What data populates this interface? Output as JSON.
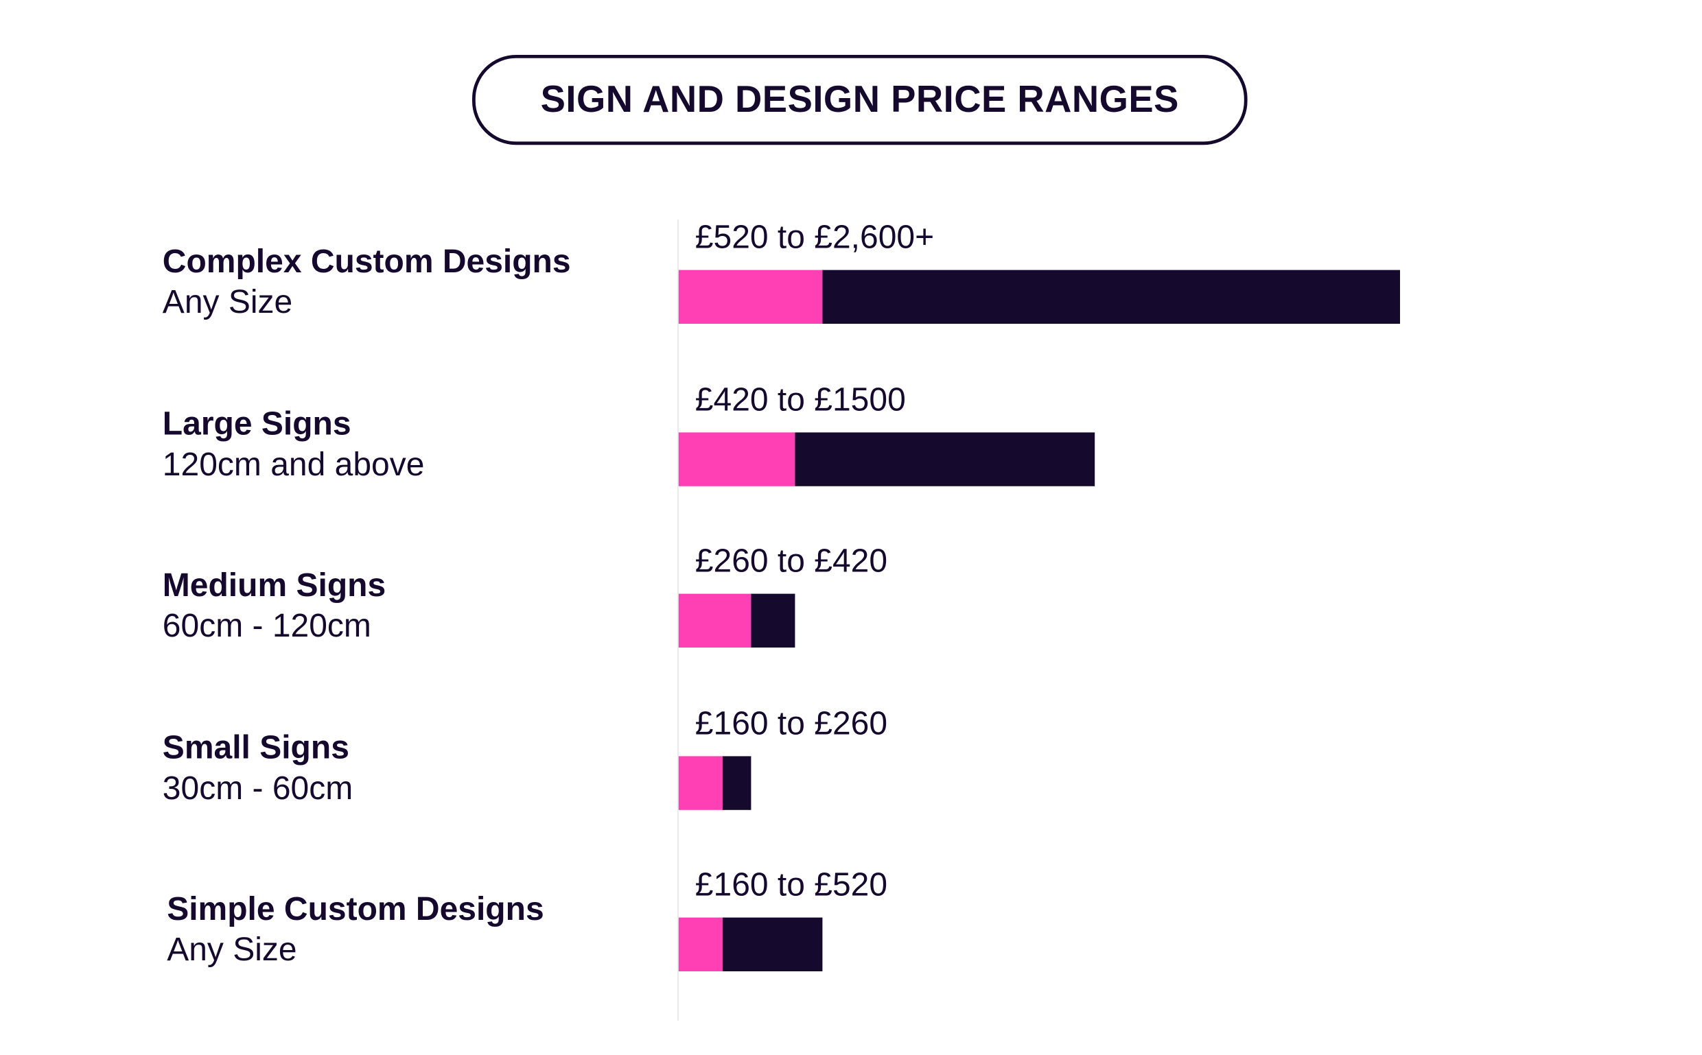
{
  "chart_data": {
    "type": "bar",
    "orientation": "horizontal",
    "stacked": true,
    "title": "SIGN AND DESIGN PRICE RANGES",
    "xlim": [
      0,
      2600
    ],
    "colors": {
      "min": "#ff3fb4",
      "range": "#150a2e"
    },
    "categories": [
      {
        "title": "Complex Custom Designs",
        "subtitle": "Any Size",
        "price_label": "£520 to £2,600+",
        "min": 520,
        "max": 2600
      },
      {
        "title": "Large Signs",
        "subtitle": "120cm and above",
        "price_label": "£420 to £1500",
        "min": 420,
        "max": 1500
      },
      {
        "title": "Medium Signs",
        "subtitle": "60cm - 120cm",
        "price_label": "£260 to £420",
        "min": 260,
        "max": 420
      },
      {
        "title": "Small Signs",
        "subtitle": "30cm - 60cm",
        "price_label": "£160 to £260",
        "min": 160,
        "max": 260
      },
      {
        "title": "Simple Custom Designs",
        "subtitle": "Any Size",
        "price_label": "£160 to £520",
        "min": 160,
        "max": 520
      }
    ]
  }
}
